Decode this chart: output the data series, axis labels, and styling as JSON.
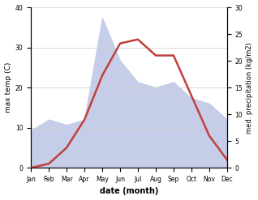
{
  "months": [
    "Jan",
    "Feb",
    "Mar",
    "Apr",
    "May",
    "Jun",
    "Jul",
    "Aug",
    "Sep",
    "Oct",
    "Nov",
    "Dec"
  ],
  "temp_max": [
    0,
    1,
    5,
    12,
    23,
    31,
    32,
    28,
    28,
    18,
    8,
    2
  ],
  "precipitation_kg": [
    7,
    9,
    8,
    9,
    28,
    20,
    16,
    15,
    16,
    13,
    12,
    9
  ],
  "temp_color": "#c0403a",
  "precip_fill_color": "#c5cde8",
  "xlabel": "date (month)",
  "ylabel_left": "max temp (C)",
  "ylabel_right": "med. precipitation (kg/m2)",
  "ylim_left": [
    0,
    40
  ],
  "ylim_right": [
    0,
    30
  ],
  "yticks_left": [
    0,
    10,
    20,
    30,
    40
  ],
  "yticks_right": [
    0,
    5,
    10,
    15,
    20,
    25,
    30
  ],
  "bg_color": "#ffffff",
  "grid_color": "#cccccc"
}
